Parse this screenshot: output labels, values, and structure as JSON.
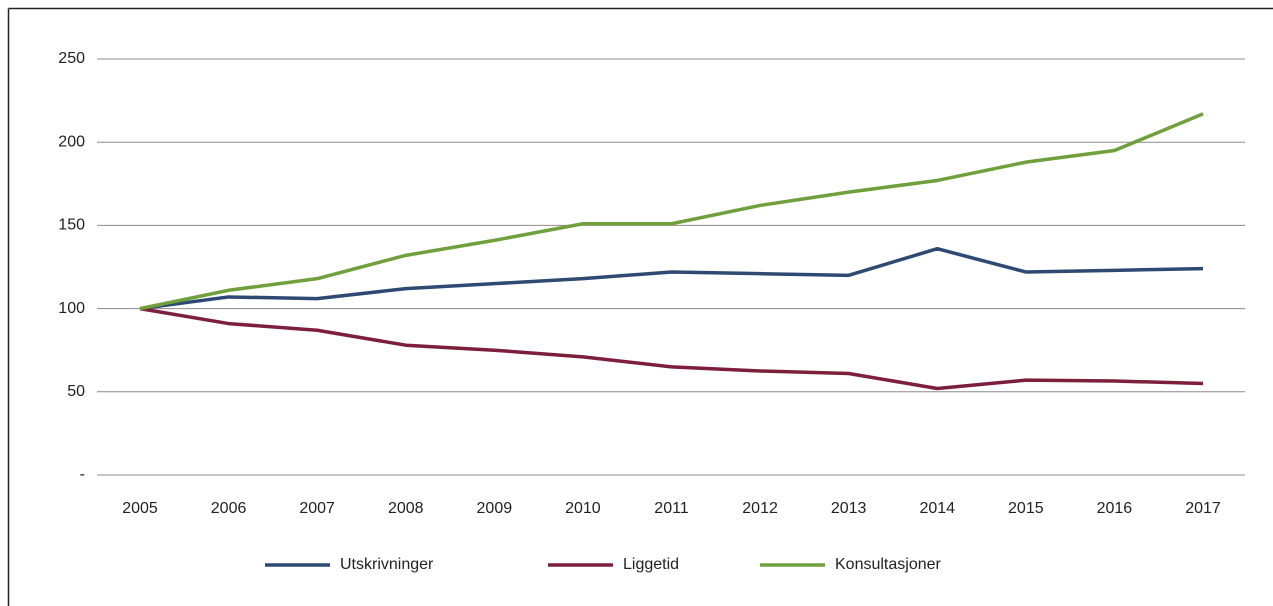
{
  "chart_data": {
    "type": "line",
    "categories": [
      "2005",
      "2006",
      "2007",
      "2008",
      "2009",
      "2010",
      "2011",
      "2012",
      "2013",
      "2014",
      "2015",
      "2016",
      "2017"
    ],
    "series": [
      {
        "name": "Utskrivninger",
        "color": "#2e4a72",
        "values": [
          100,
          107,
          106,
          112,
          115,
          118,
          122,
          121,
          120,
          136,
          122,
          123,
          124
        ]
      },
      {
        "name": "Liggetid",
        "color": "#7d1f3c",
        "values": [
          100,
          91,
          87,
          78,
          75,
          71,
          65,
          62.5,
          61,
          52,
          57,
          56.5,
          55
        ]
      },
      {
        "name": "Konsultasjoner",
        "color": "#70a03c",
        "values": [
          100,
          111,
          118,
          132,
          141,
          151,
          151,
          162,
          170,
          177,
          188,
          195,
          217
        ]
      }
    ],
    "ylim": [
      0,
      250
    ],
    "yticks": [
      {
        "value": 0,
        "label": "-"
      },
      50,
      100,
      150,
      200,
      250
    ],
    "grid": true,
    "legend": "bottom"
  }
}
